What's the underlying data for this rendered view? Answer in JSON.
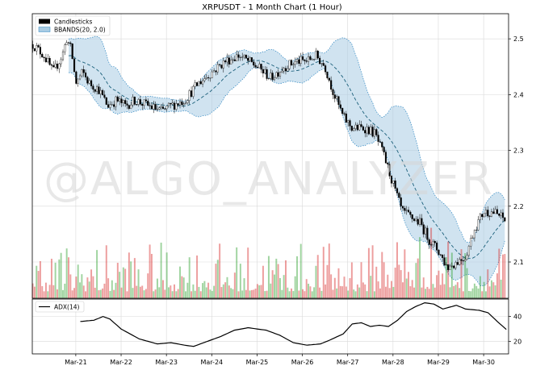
{
  "chart_data": {
    "type": "candlestick",
    "title": "XRPUSDT - 1 Month Chart (1 Hour)",
    "watermark": "@ALGO_ANALYZER",
    "x_tick_labels": [
      "Mar-21",
      "Mar-22",
      "Mar-23",
      "Mar-24",
      "Mar-25",
      "Mar-26",
      "Mar-27",
      "Mar-28",
      "Mar-29",
      "Mar-30"
    ],
    "x_tick_day": [
      1,
      2,
      3,
      4,
      5,
      6,
      7,
      8,
      9,
      10
    ],
    "x_range_day": [
      0.04,
      10.55
    ],
    "price_axis": {
      "ticks": [
        2.1,
        2.2,
        2.3,
        2.4,
        2.5
      ],
      "tick_labels": [
        "2.1",
        "2.2",
        "2.3",
        "2.4",
        "2.5"
      ],
      "ylim": [
        2.035,
        2.545
      ],
      "side": "right"
    },
    "adx_axis": {
      "ticks": [
        20,
        40
      ],
      "tick_labels": [
        "20",
        "40"
      ],
      "ylim": [
        10,
        54
      ],
      "side": "right"
    },
    "legend": {
      "placement": "upper-left",
      "entries": [
        "Candlesticks",
        "BBANDS(20, 2.0)"
      ]
    },
    "adx_legend": {
      "placement": "upper-left",
      "entry": "ADX(14)"
    },
    "price_anchors": {
      "description": "approximate hourly close path; day index, price",
      "points": [
        [
          0.05,
          2.49
        ],
        [
          0.3,
          2.47
        ],
        [
          0.5,
          2.44
        ],
        [
          0.7,
          2.47
        ],
        [
          0.8,
          2.5
        ],
        [
          0.9,
          2.48
        ],
        [
          1.0,
          2.42
        ],
        [
          1.15,
          2.44
        ],
        [
          1.3,
          2.42
        ],
        [
          1.5,
          2.41
        ],
        [
          1.7,
          2.38
        ],
        [
          1.9,
          2.39
        ],
        [
          2.1,
          2.38
        ],
        [
          2.3,
          2.39
        ],
        [
          2.6,
          2.38
        ],
        [
          2.9,
          2.37
        ],
        [
          3.1,
          2.38
        ],
        [
          3.4,
          2.39
        ],
        [
          3.7,
          2.42
        ],
        [
          4.0,
          2.44
        ],
        [
          4.3,
          2.46
        ],
        [
          4.6,
          2.47
        ],
        [
          4.8,
          2.46
        ],
        [
          5.0,
          2.45
        ],
        [
          5.3,
          2.43
        ],
        [
          5.6,
          2.45
        ],
        [
          5.9,
          2.46
        ],
        [
          6.1,
          2.46
        ],
        [
          6.3,
          2.47
        ],
        [
          6.5,
          2.45
        ],
        [
          6.7,
          2.4
        ],
        [
          6.9,
          2.36
        ],
        [
          7.1,
          2.34
        ],
        [
          7.4,
          2.34
        ],
        [
          7.6,
          2.33
        ],
        [
          7.8,
          2.29
        ],
        [
          8.0,
          2.24
        ],
        [
          8.2,
          2.19
        ],
        [
          8.4,
          2.18
        ],
        [
          8.6,
          2.17
        ],
        [
          8.8,
          2.14
        ],
        [
          9.0,
          2.12
        ],
        [
          9.2,
          2.09
        ],
        [
          9.4,
          2.1
        ],
        [
          9.6,
          2.11
        ],
        [
          9.8,
          2.16
        ],
        [
          10.0,
          2.19
        ],
        [
          10.2,
          2.19
        ],
        [
          10.4,
          2.18
        ],
        [
          10.52,
          2.17
        ]
      ]
    },
    "bbands": {
      "period": 20,
      "stddev": 2.0
    },
    "adx_anchors": {
      "description": "ADX(14) path; day index, value",
      "points": [
        [
          1.1,
          36
        ],
        [
          1.4,
          37
        ],
        [
          1.6,
          40
        ],
        [
          1.75,
          38
        ],
        [
          2.0,
          30
        ],
        [
          2.4,
          22
        ],
        [
          2.8,
          18
        ],
        [
          3.1,
          19
        ],
        [
          3.4,
          17
        ],
        [
          3.6,
          16
        ],
        [
          3.9,
          20
        ],
        [
          4.2,
          24
        ],
        [
          4.5,
          29
        ],
        [
          4.8,
          31
        ],
        [
          5.0,
          30
        ],
        [
          5.2,
          29
        ],
        [
          5.5,
          25
        ],
        [
          5.8,
          19
        ],
        [
          6.1,
          17
        ],
        [
          6.4,
          18
        ],
        [
          6.6,
          21
        ],
        [
          6.9,
          26
        ],
        [
          7.1,
          34
        ],
        [
          7.3,
          35
        ],
        [
          7.5,
          32
        ],
        [
          7.7,
          33
        ],
        [
          7.9,
          32
        ],
        [
          8.1,
          37
        ],
        [
          8.3,
          44
        ],
        [
          8.5,
          48
        ],
        [
          8.7,
          51
        ],
        [
          8.9,
          50
        ],
        [
          9.1,
          46
        ],
        [
          9.4,
          49
        ],
        [
          9.6,
          46
        ],
        [
          9.9,
          45
        ],
        [
          10.1,
          43
        ],
        [
          10.3,
          36
        ],
        [
          10.52,
          29
        ]
      ]
    },
    "volume": {
      "note": "relative volume bars; green = up candle, red = down candle",
      "colors": {
        "up": "#2ca02c",
        "down": "#d62728"
      }
    },
    "colors": {
      "up_candle": "#ffffff",
      "down_candle": "#000000",
      "band_fill": "#a9cce3",
      "band_edge": "#2e86c1",
      "mid_band": "#1a5f7a",
      "adx_line": "#000000"
    }
  }
}
